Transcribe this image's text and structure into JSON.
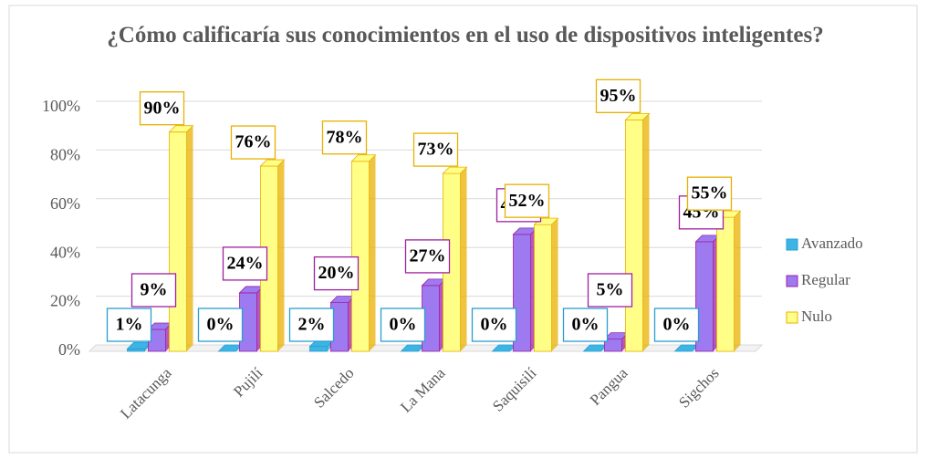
{
  "chart_data": {
    "type": "bar3d",
    "title": "¿Cómo calificaría sus conocimientos en el uso de dispositivos inteligentes?",
    "categories": [
      "Latacunga",
      "Pujilí",
      "Salcedo",
      "La Mana",
      "Saquisilí",
      "Pangua",
      "Sigchos"
    ],
    "series": [
      {
        "name": "Avanzado",
        "color": "#3cb4e6",
        "edge": "#2a9fd0",
        "values": [
          1,
          0,
          2,
          0,
          0,
          0,
          0
        ],
        "value_labels": [
          "1%",
          "0%",
          "2%",
          "0%",
          "0%",
          "0%",
          "0%"
        ]
      },
      {
        "name": "Regular",
        "color": "#9d7af0",
        "edge": "#a020a0",
        "values": [
          9,
          24,
          20,
          27,
          48,
          5,
          45
        ],
        "value_labels": [
          "9%",
          "24%",
          "20%",
          "27%",
          "48%",
          "5%",
          "45%"
        ]
      },
      {
        "name": "Nulo",
        "color": "#ffff88",
        "edge": "#e8b000",
        "values": [
          90,
          76,
          78,
          73,
          52,
          95,
          55
        ],
        "value_labels": [
          "90%",
          "76%",
          "78%",
          "73%",
          "52%",
          "95%",
          "55%"
        ]
      }
    ],
    "ylim": [
      0,
      100
    ],
    "yticks": [
      {
        "value": 0,
        "label": "0%"
      },
      {
        "value": 20,
        "label": "20%"
      },
      {
        "value": 40,
        "label": "40%"
      },
      {
        "value": 60,
        "label": "60%"
      },
      {
        "value": 80,
        "label": "80%"
      },
      {
        "value": 100,
        "label": "100%"
      }
    ],
    "grid": true,
    "legend": "right"
  }
}
